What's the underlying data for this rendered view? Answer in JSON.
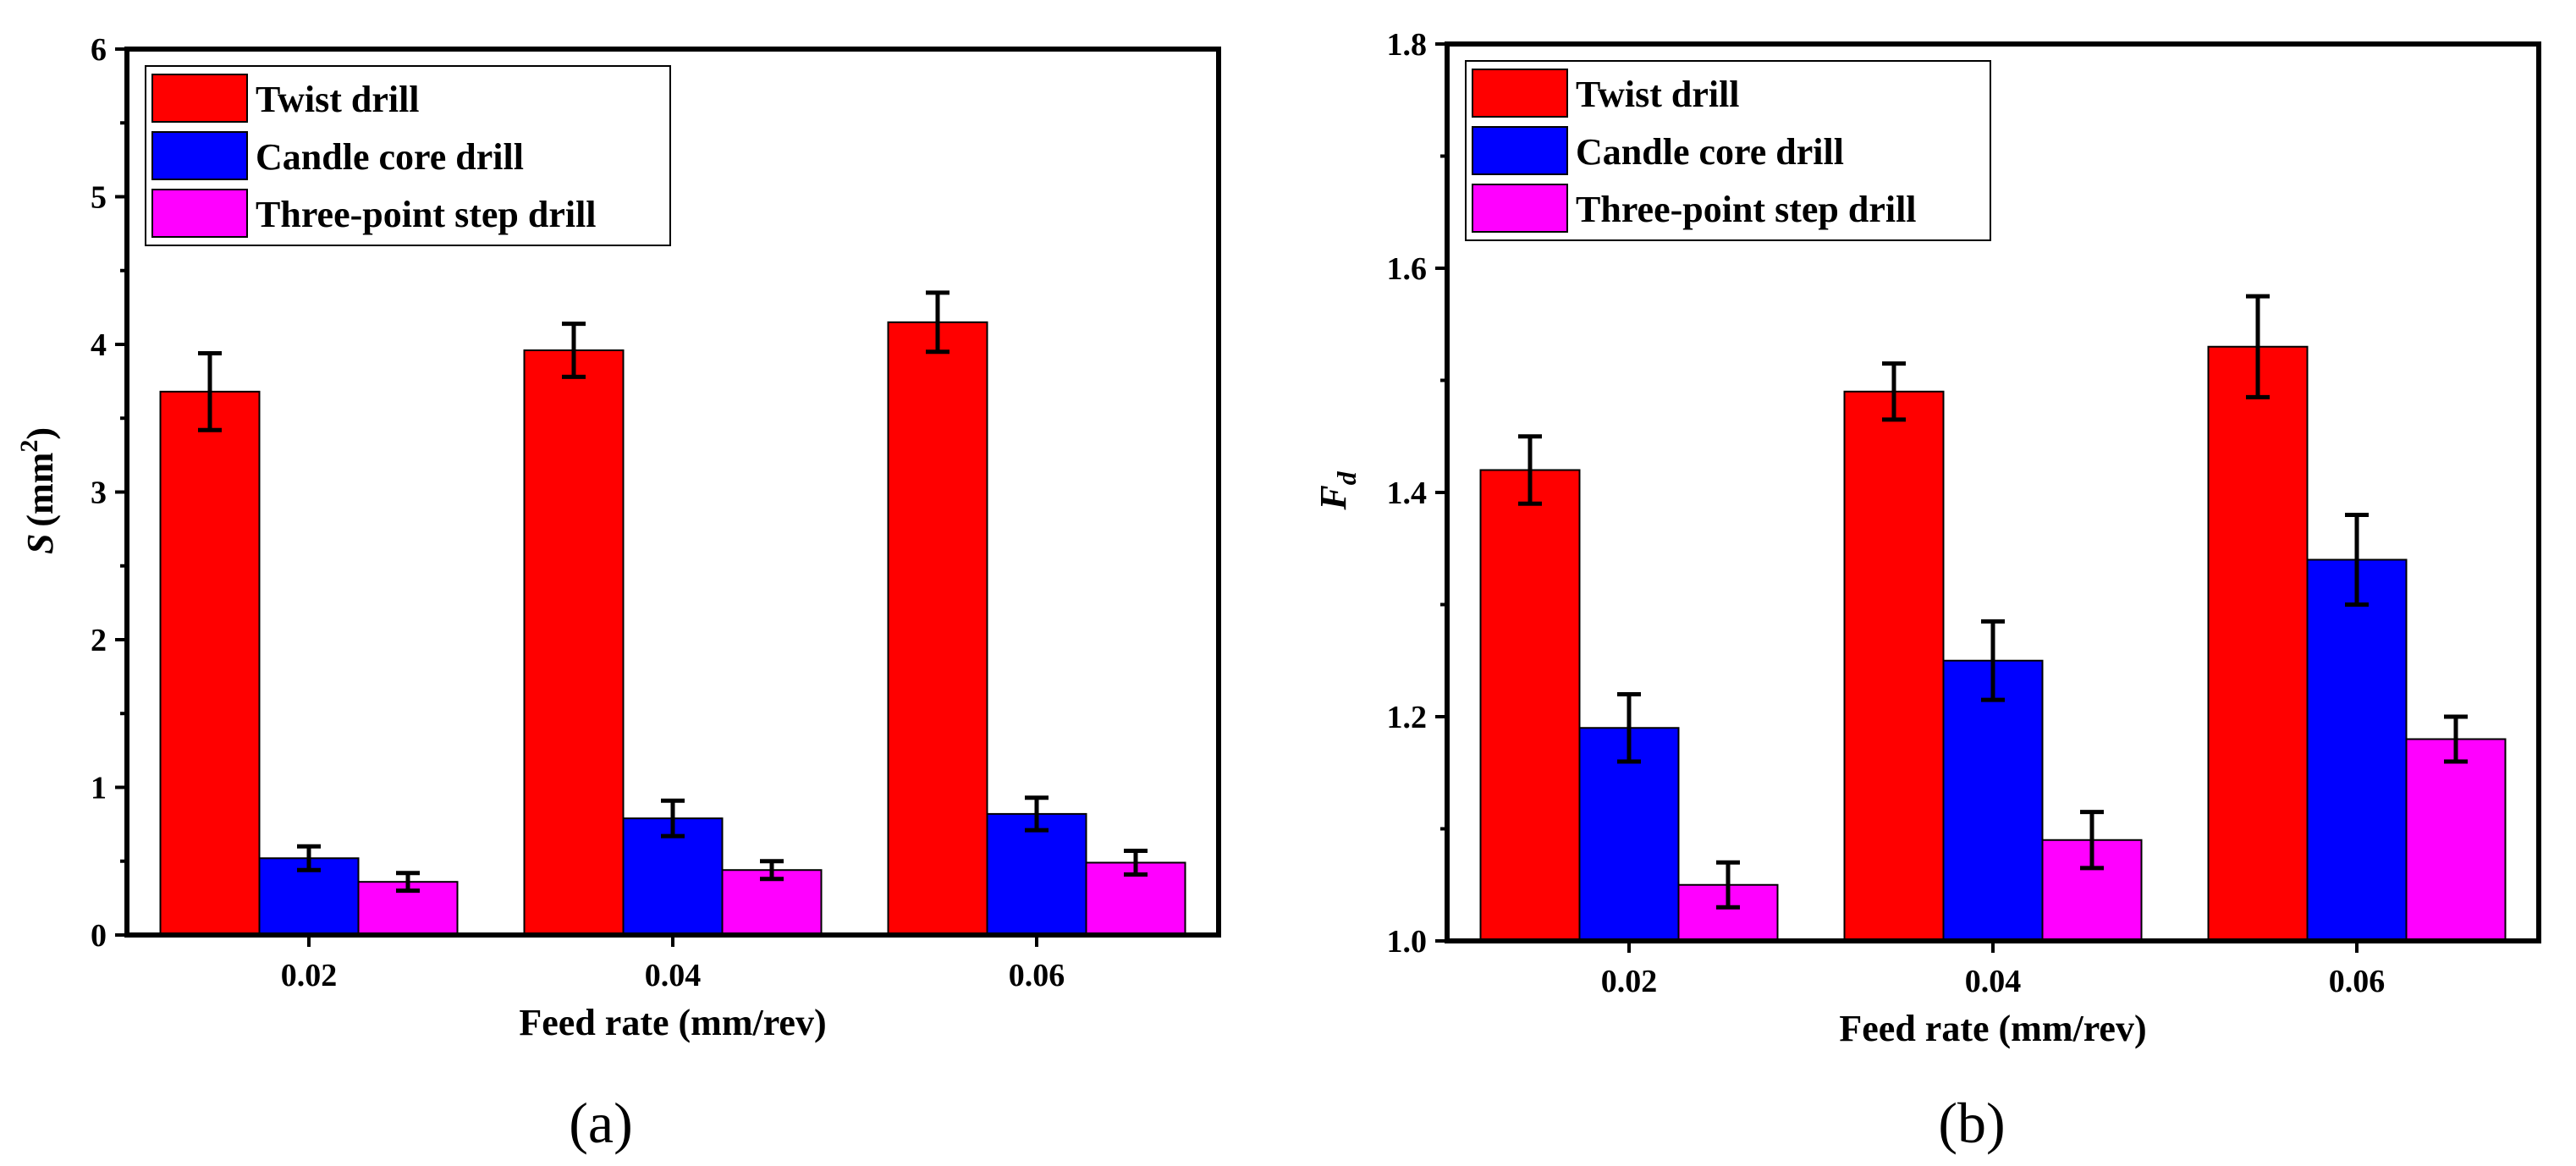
{
  "chart_data": [
    {
      "type": "bar",
      "panel_label": "(a)",
      "title": "",
      "xlabel": "Feed rate (mm/rev)",
      "ylabel": {
        "var": "S",
        "unit": "(mm",
        "sup": "2",
        "close": ")"
      },
      "ylim": [
        0,
        6
      ],
      "yticks": [
        0,
        1,
        2,
        3,
        4,
        5,
        6
      ],
      "categories": [
        "0.02",
        "0.04",
        "0.06"
      ],
      "series": [
        {
          "name": "Twist drill",
          "color": "#ff0000",
          "values": [
            3.68,
            3.96,
            4.15
          ],
          "errors": [
            0.26,
            0.18,
            0.2
          ]
        },
        {
          "name": "Candle core drill",
          "color": "#0000ff",
          "values": [
            0.52,
            0.79,
            0.82
          ],
          "errors": [
            0.08,
            0.12,
            0.11
          ]
        },
        {
          "name": "Three-point step drill",
          "color": "#ff00ff",
          "values": [
            0.36,
            0.44,
            0.49
          ],
          "errors": [
            0.06,
            0.06,
            0.08
          ]
        }
      ],
      "legend_position": "top-left"
    },
    {
      "type": "bar",
      "panel_label": "(b)",
      "title": "",
      "xlabel": "Feed rate (mm/rev)",
      "ylabel": {
        "var": "F",
        "sub": "d"
      },
      "ylim": [
        1.0,
        1.8
      ],
      "yticks": [
        "1.0",
        "1.2",
        "1.4",
        "1.6",
        "1.8"
      ],
      "categories": [
        "0.02",
        "0.04",
        "0.06"
      ],
      "series": [
        {
          "name": "Twist drill",
          "color": "#ff0000",
          "values": [
            1.42,
            1.49,
            1.53
          ],
          "errors": [
            0.03,
            0.025,
            0.045
          ]
        },
        {
          "name": "Candle core drill",
          "color": "#0000ff",
          "values": [
            1.19,
            1.25,
            1.34
          ],
          "errors": [
            0.03,
            0.035,
            0.04
          ]
        },
        {
          "name": "Three-point step drill",
          "color": "#ff00ff",
          "values": [
            1.05,
            1.09,
            1.18
          ],
          "errors": [
            0.02,
            0.025,
            0.02
          ]
        }
      ],
      "legend_position": "top-left"
    }
  ]
}
